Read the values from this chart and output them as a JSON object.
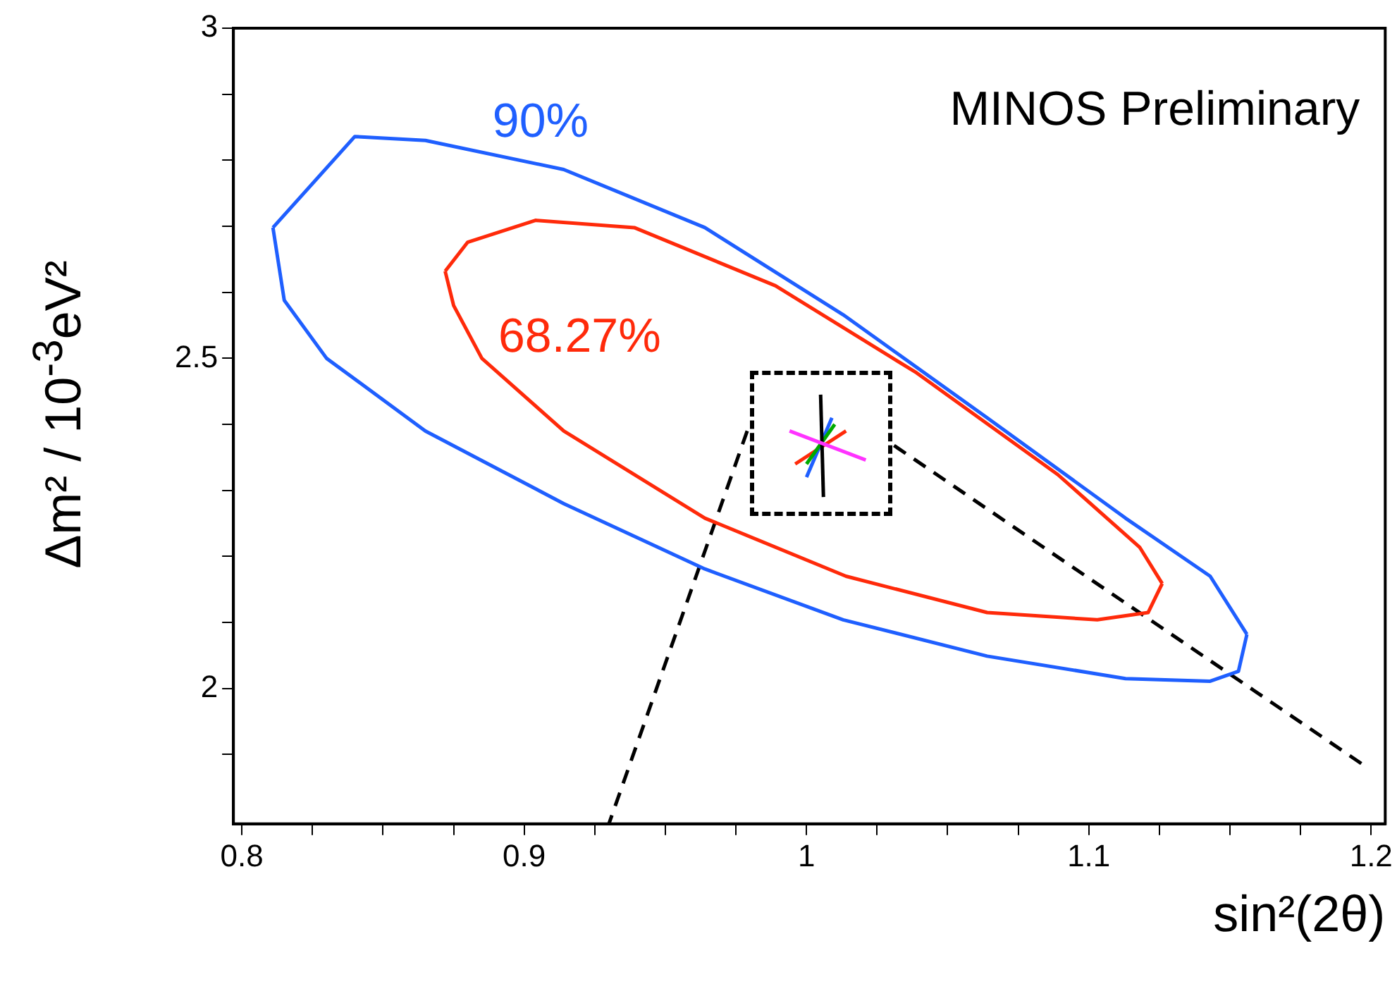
{
  "chart_data": {
    "type": "line",
    "xlabel": "sin²(2θ)",
    "ylabel": "Δm² / 10$^{-3}$eV²",
    "xlim": [
      0.797,
      1.205
    ],
    "ylim": [
      1.795,
      3
    ],
    "xticks": [
      0.8,
      {
        "value": 0.825,
        "label": null
      },
      {
        "value": 0.85,
        "label": null
      },
      {
        "value": 0.875,
        "label": null
      },
      0.9,
      {
        "value": 0.925,
        "label": null
      },
      {
        "value": 0.95,
        "label": null
      },
      {
        "value": 0.975,
        "label": null
      },
      1,
      {
        "value": 1.025,
        "label": null
      },
      {
        "value": 1.05,
        "label": null
      },
      {
        "value": 1.075,
        "label": null
      },
      1.1,
      {
        "value": 1.125,
        "label": null
      },
      {
        "value": 1.15,
        "label": null
      },
      {
        "value": 1.175,
        "label": null
      },
      1.2
    ],
    "yticks": [
      {
        "value": 1.9,
        "label": null
      },
      2,
      {
        "value": 2.1,
        "label": null
      },
      {
        "value": 2.2,
        "label": null
      },
      {
        "value": 2.3,
        "label": null
      },
      {
        "value": 2.4,
        "label": null
      },
      2.5,
      {
        "value": 2.6,
        "label": null
      },
      {
        "value": 2.7,
        "label": null
      },
      {
        "value": 2.8,
        "label": null
      },
      {
        "value": 2.9,
        "label": null
      },
      3
    ],
    "grid": false,
    "legend": false,
    "marker": "none",
    "series": [
      {
        "color": "#1f5fff",
        "line_style": "solid",
        "x": [
          0.811,
          0.84,
          0.865,
          0.914,
          0.964,
          1.013,
          1.064,
          1.113,
          1.143,
          1.156
        ],
        "values": [
          2.698,
          2.836,
          2.83,
          2.786,
          2.698,
          2.566,
          2.41,
          2.258,
          2.17,
          2.082
        ]
      },
      {
        "color": "#ff2a0a",
        "line_style": "solid",
        "x": [
          0.872,
          0.88,
          0.904,
          0.939,
          0.989,
          1.039,
          1.089,
          1.118,
          1.126
        ],
        "values": [
          2.632,
          2.676,
          2.709,
          2.698,
          2.61,
          2.478,
          2.324,
          2.214,
          2.159
        ]
      },
      {
        "color": "#ff33ff",
        "line_style": "solid",
        "x": [
          0.994,
          1.021
        ],
        "values": [
          2.39,
          2.346
        ]
      },
      {
        "color": "#000000",
        "line_style": "solid",
        "x": [
          1.005,
          1.006
        ],
        "values": [
          2.445,
          2.29
        ]
      },
      {
        "color": "#00aa00",
        "line_style": "solid",
        "x": [
          1.0,
          1.01
        ],
        "values": [
          2.34,
          2.4
        ]
      },
      {
        "color": "#1f5fff",
        "line_style": "solid",
        "x": [
          1.0,
          1.009
        ],
        "values": [
          2.32,
          2.41
        ]
      },
      {
        "color": "#ff2a0a",
        "line_style": "solid",
        "x": [
          0.996,
          1.014
        ],
        "values": [
          2.34,
          2.39
        ]
      },
      {
        "color": "#1f5fff",
        "line_style": "solid",
        "x": [
          0.811,
          0.815,
          0.83,
          0.865,
          0.914,
          0.964,
          1.013,
          1.064,
          1.113,
          1.143,
          1.153,
          1.156
        ],
        "values": [
          2.698,
          2.588,
          2.5,
          2.39,
          2.28,
          2.181,
          2.104,
          2.049,
          2.015,
          2.011,
          2.026,
          2.082
        ]
      },
      {
        "color": "#ff2a0a",
        "line_style": "solid",
        "x": [
          0.872,
          0.875,
          0.885,
          0.914,
          0.964,
          1.014,
          1.064,
          1.103,
          1.121,
          1.126
        ],
        "values": [
          2.632,
          2.58,
          2.5,
          2.39,
          2.258,
          2.17,
          2.115,
          2.104,
          2.115,
          2.159
        ]
      },
      {
        "color": "#000000",
        "line_style": "dashed",
        "x": [
          0.979,
          0.93
        ],
        "values": [
          2.39,
          1.795
        ]
      },
      {
        "color": "#000000",
        "line_style": "dashed",
        "x": [
          1.031,
          1.198
        ],
        "values": [
          2.368,
          1.882
        ]
      }
    ],
    "annotations": [
      "90%",
      "68.27%",
      "MINOS Preliminary"
    ]
  }
}
